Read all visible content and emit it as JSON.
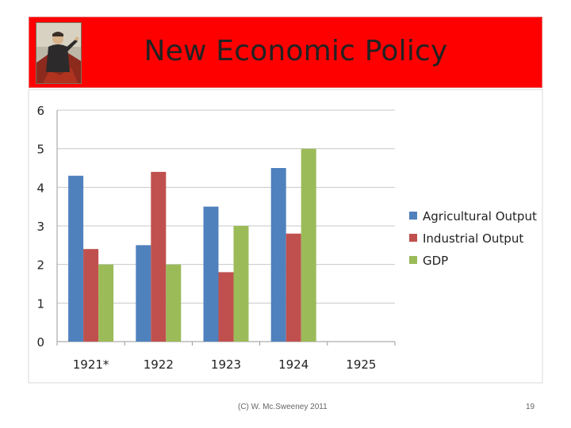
{
  "slide": {
    "title": "New Economic Policy",
    "title_bg": "#ff0000",
    "portrait_icon": "portrait-painting-icon",
    "footer": "(C) W. Mc.Sweeney 2011",
    "page_number": "19"
  },
  "chart_data": {
    "type": "bar",
    "title": "",
    "xlabel": "",
    "ylabel": "",
    "categories": [
      "1921*",
      "1922",
      "1923",
      "1924",
      "1925"
    ],
    "ylim": [
      0,
      6
    ],
    "yticks": [
      "0",
      "1",
      "2",
      "3",
      "4",
      "5",
      "6"
    ],
    "grid": true,
    "legend_position": "right",
    "series": [
      {
        "name": "Agricultural Output",
        "color": "#4f81bd",
        "values": [
          4.3,
          2.5,
          3.5,
          4.5,
          null
        ]
      },
      {
        "name": "Industrial Output",
        "color": "#c0504d",
        "values": [
          2.4,
          4.4,
          1.8,
          2.8,
          null
        ]
      },
      {
        "name": "GDP",
        "color": "#9bbb59",
        "values": [
          2.0,
          2.0,
          3.0,
          5.0,
          null
        ]
      }
    ]
  }
}
